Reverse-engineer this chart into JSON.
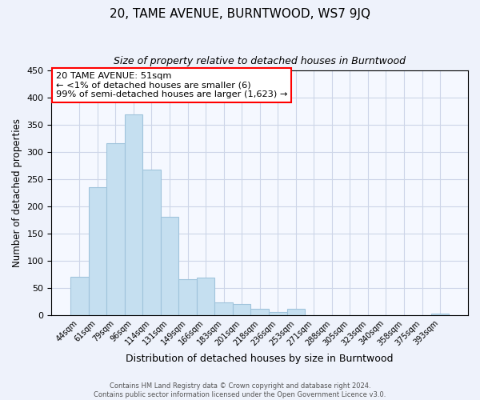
{
  "title": "20, TAME AVENUE, BURNTWOOD, WS7 9JQ",
  "subtitle": "Size of property relative to detached houses in Burntwood",
  "xlabel": "Distribution of detached houses by size in Burntwood",
  "ylabel": "Number of detached properties",
  "categories": [
    "44sqm",
    "61sqm",
    "79sqm",
    "96sqm",
    "114sqm",
    "131sqm",
    "149sqm",
    "166sqm",
    "183sqm",
    "201sqm",
    "218sqm",
    "236sqm",
    "253sqm",
    "271sqm",
    "288sqm",
    "305sqm",
    "323sqm",
    "340sqm",
    "358sqm",
    "375sqm",
    "393sqm"
  ],
  "values": [
    70,
    235,
    317,
    370,
    268,
    181,
    66,
    69,
    24,
    20,
    11,
    5,
    12,
    0,
    0,
    0,
    0,
    0,
    0,
    0,
    3
  ],
  "bar_color": "#c5dff0",
  "bar_edge_color": "#a0c4dc",
  "annotation_box_text_line1": "20 TAME AVENUE: 51sqm",
  "annotation_box_text_line2": "← <1% of detached houses are smaller (6)",
  "annotation_box_text_line3": "99% of semi-detached houses are larger (1,623) →",
  "annotation_box_edge_color": "red",
  "ylim": [
    0,
    450
  ],
  "yticks": [
    0,
    50,
    100,
    150,
    200,
    250,
    300,
    350,
    400,
    450
  ],
  "footer_line1": "Contains HM Land Registry data © Crown copyright and database right 2024.",
  "footer_line2": "Contains public sector information licensed under the Open Government Licence v3.0.",
  "bg_color": "#eef2fb",
  "plot_bg_color": "#f5f8ff",
  "grid_color": "#cdd5e8"
}
